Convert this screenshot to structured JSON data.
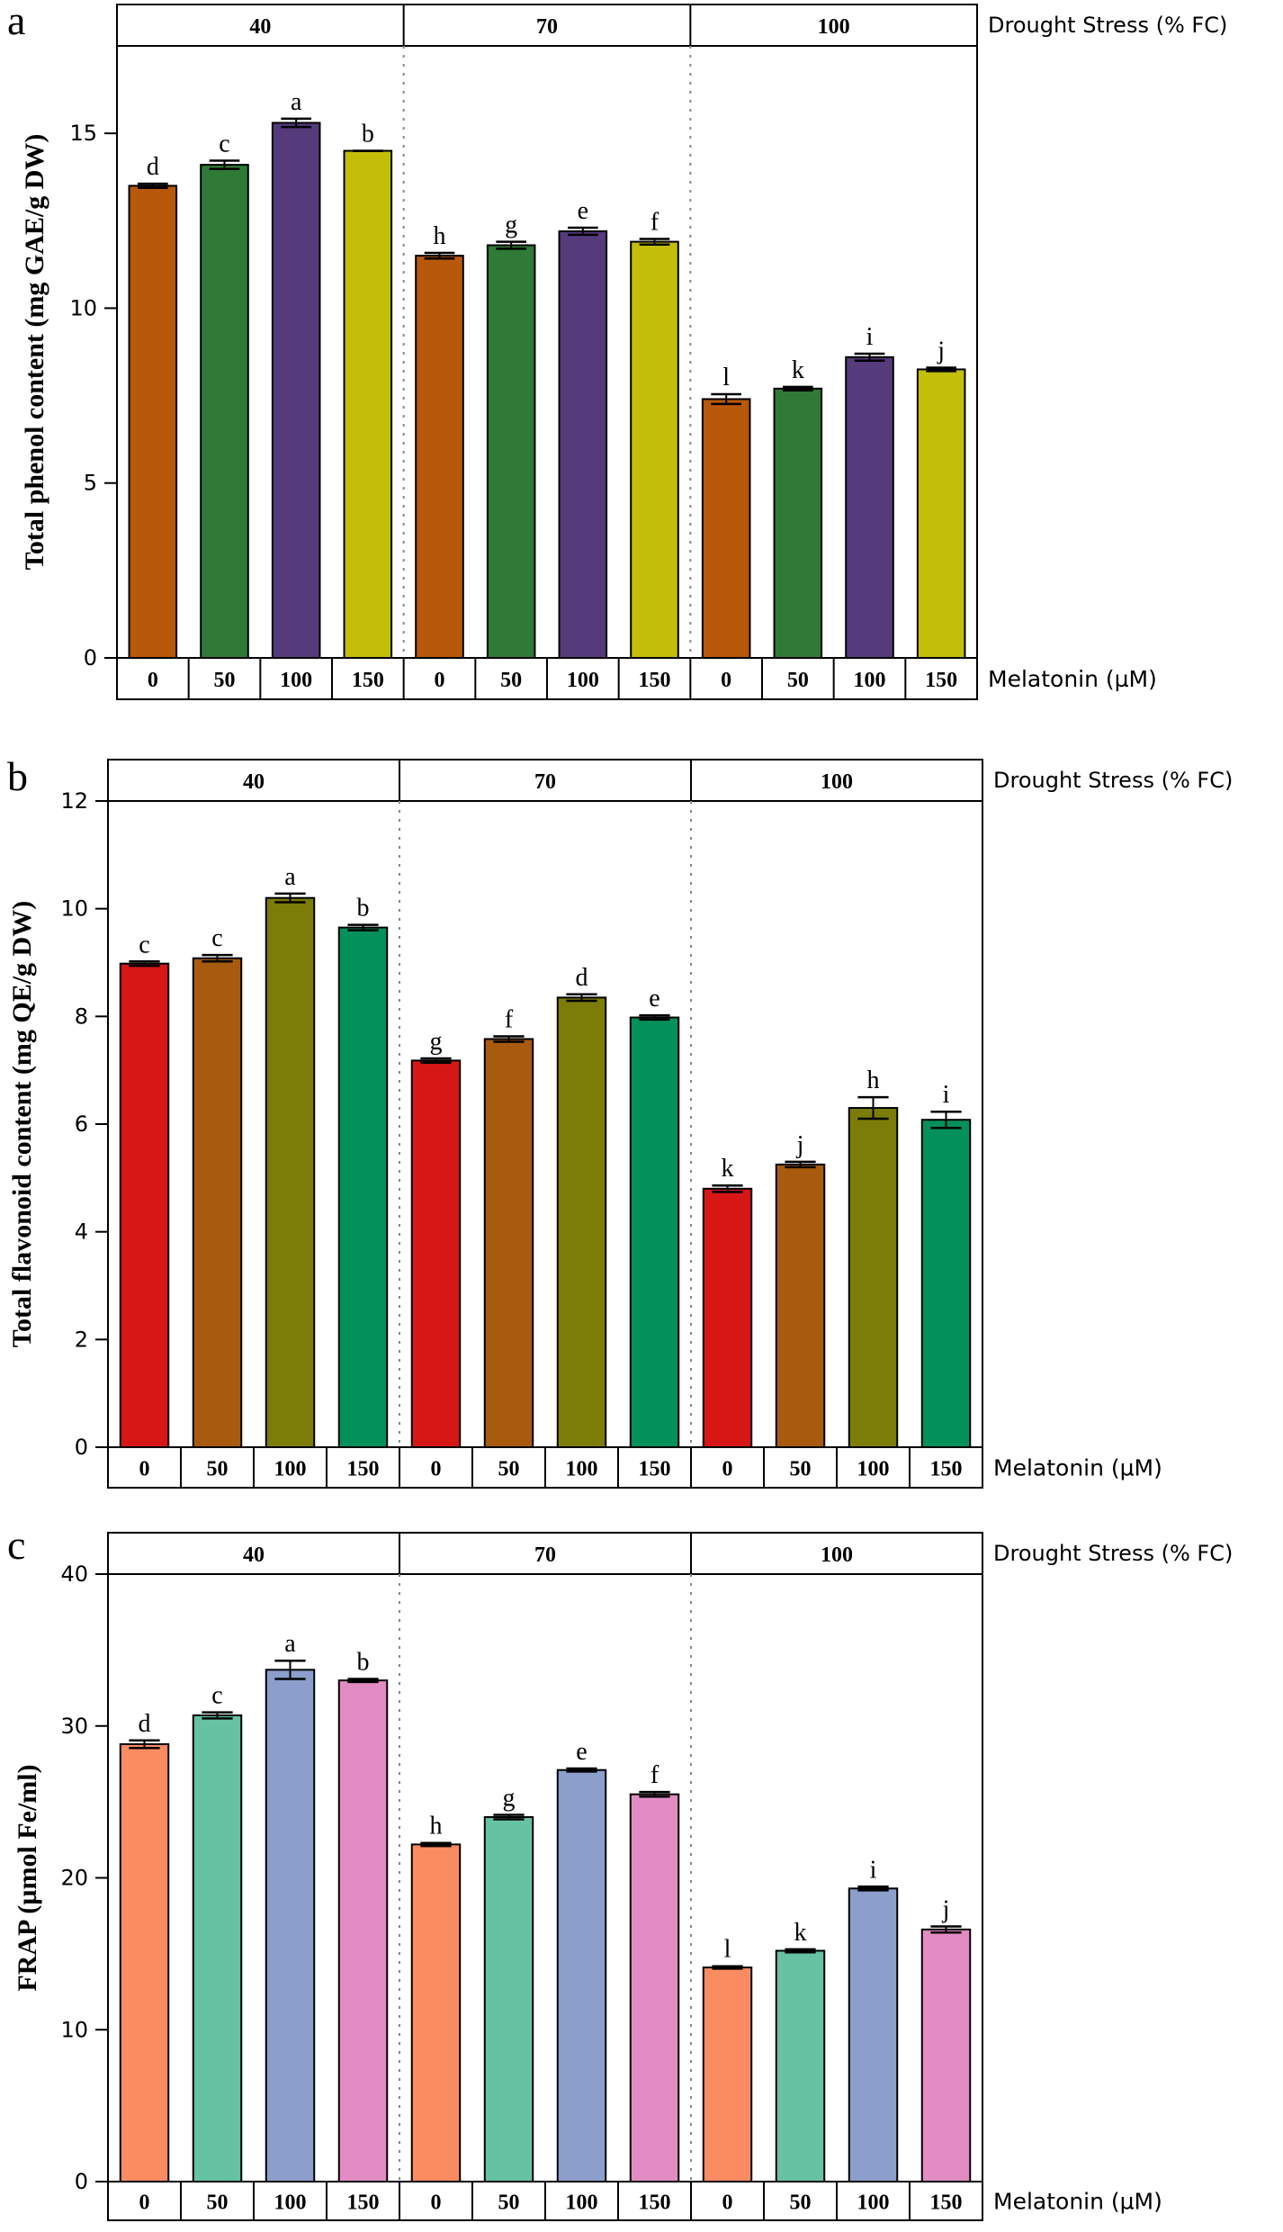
{
  "chart_data": [
    {
      "type": "bar",
      "panel_letter": "a",
      "ylabel": "Total phenol content (mg GAE/g DW)",
      "ylim": [
        0,
        17.5
      ],
      "yticks": [
        0,
        5,
        10,
        15
      ],
      "ytick_labels": [
        "0",
        "5",
        "10",
        "15"
      ],
      "group_axis_label": "Drought Stress (% FC)",
      "category_axis_label": "Melatonin (µM)",
      "groups": [
        "40",
        "70",
        "100"
      ],
      "categories": [
        "0",
        "50",
        "100",
        "150"
      ],
      "colors": [
        "#b8580a",
        "#2e7a36",
        "#553a7c",
        "#c2be0a"
      ],
      "series": [
        {
          "group": "40",
          "values": [
            13.5,
            14.1,
            15.3,
            14.5
          ],
          "errors": [
            0.06,
            0.12,
            0.12,
            0.0
          ],
          "letters": [
            "d",
            "c",
            "a",
            "b"
          ]
        },
        {
          "group": "70",
          "values": [
            11.5,
            11.8,
            12.2,
            11.9
          ],
          "errors": [
            0.08,
            0.1,
            0.1,
            0.08
          ],
          "letters": [
            "h",
            "g",
            "e",
            "f"
          ]
        },
        {
          "group": "100",
          "values": [
            7.4,
            7.7,
            8.6,
            8.25
          ],
          "errors": [
            0.14,
            0.05,
            0.1,
            0.05
          ],
          "letters": [
            "l",
            "k",
            "i",
            "j"
          ]
        }
      ]
    },
    {
      "type": "bar",
      "panel_letter": "b",
      "ylabel": "Total flavonoid content (mg QE/g DW)",
      "ylim": [
        0,
        12
      ],
      "yticks": [
        0,
        2,
        4,
        6,
        8,
        10,
        12
      ],
      "ytick_labels": [
        "0",
        "2",
        "4",
        "6",
        "8",
        "10",
        "12"
      ],
      "group_axis_label": "Drought Stress (% FC)",
      "category_axis_label": "Melatonin (µM)",
      "groups": [
        "40",
        "70",
        "100"
      ],
      "categories": [
        "0",
        "50",
        "100",
        "150"
      ],
      "colors": [
        "#d71616",
        "#a85b0e",
        "#7c7c08",
        "#04905a"
      ],
      "series": [
        {
          "group": "40",
          "values": [
            8.98,
            9.08,
            10.2,
            9.65
          ],
          "errors": [
            0.04,
            0.06,
            0.08,
            0.05
          ],
          "letters": [
            "c",
            "c",
            "a",
            "b"
          ]
        },
        {
          "group": "70",
          "values": [
            7.18,
            7.58,
            8.35,
            7.98
          ],
          "errors": [
            0.04,
            0.05,
            0.06,
            0.04
          ],
          "letters": [
            "g",
            "f",
            "d",
            "e"
          ]
        },
        {
          "group": "100",
          "values": [
            4.8,
            5.25,
            6.3,
            6.08
          ],
          "errors": [
            0.06,
            0.05,
            0.2,
            0.15
          ],
          "letters": [
            "k",
            "j",
            "h",
            "i"
          ]
        }
      ]
    },
    {
      "type": "bar",
      "panel_letter": "c",
      "ylabel": "FRAP (µmol Fe/ml)",
      "ylim": [
        0,
        40
      ],
      "yticks": [
        0,
        10,
        20,
        30,
        40
      ],
      "ytick_labels": [
        "0",
        "10",
        "20",
        "30",
        "40"
      ],
      "group_axis_label": "Drought Stress (% FC)",
      "category_axis_label": "Melatonin (µM)",
      "groups": [
        "40",
        "70",
        "100"
      ],
      "categories": [
        "0",
        "50",
        "100",
        "150"
      ],
      "colors": [
        "#fb8c62",
        "#65c3a4",
        "#8c9ecb",
        "#e38cc3"
      ],
      "series": [
        {
          "group": "40",
          "values": [
            28.8,
            30.7,
            33.7,
            33.0
          ],
          "errors": [
            0.25,
            0.2,
            0.6,
            0.1
          ],
          "letters": [
            "d",
            "c",
            "a",
            "b"
          ]
        },
        {
          "group": "70",
          "values": [
            22.2,
            24.0,
            27.1,
            25.5
          ],
          "errors": [
            0.1,
            0.15,
            0.1,
            0.15
          ],
          "letters": [
            "h",
            "g",
            "e",
            "f"
          ]
        },
        {
          "group": "100",
          "values": [
            14.1,
            15.2,
            19.3,
            16.6
          ],
          "errors": [
            0.08,
            0.1,
            0.12,
            0.2
          ],
          "letters": [
            "l",
            "k",
            "i",
            "j"
          ]
        }
      ]
    }
  ]
}
